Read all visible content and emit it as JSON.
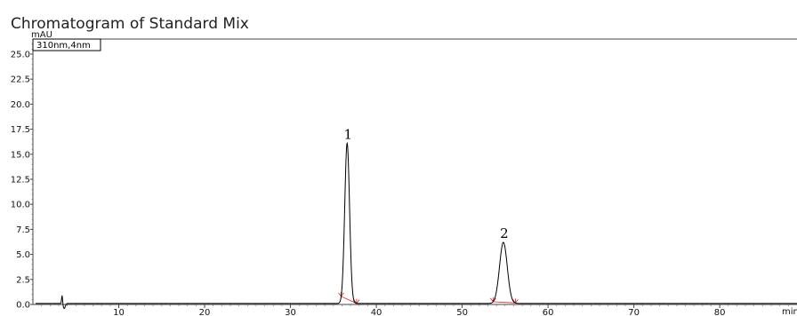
{
  "chart_data": {
    "type": "line",
    "title": "Chromatogram of Standard Mix",
    "ylabel": "mAU",
    "xlabel": "min",
    "channel_label": "310nm,4nm",
    "xlim": [
      0,
      89
    ],
    "ylim": [
      0,
      26.5
    ],
    "x_ticks": [
      10,
      20,
      30,
      40,
      50,
      60,
      70,
      80
    ],
    "y_ticks": [
      0.0,
      2.5,
      5.0,
      7.5,
      10.0,
      12.5,
      15.0,
      17.5,
      20.0,
      22.5,
      25.0
    ],
    "y_tick_labels": [
      "0.0",
      "2.5",
      "5.0",
      "7.5",
      "10.0",
      "12.5",
      "15.0",
      "17.5",
      "20.0",
      "22.5",
      "25.0"
    ],
    "grid": false,
    "line_color": "#000000",
    "baseline_color": "#e02020",
    "peaks": [
      {
        "label": "1",
        "retention_time": 36.6,
        "height": 16.0,
        "width": 0.28,
        "start": 35.9,
        "end": 37.7
      },
      {
        "label": "2",
        "retention_time": 54.8,
        "height": 6.1,
        "width": 0.45,
        "start": 53.6,
        "end": 56.2
      }
    ],
    "artifacts": [
      {
        "time": 3.4,
        "height": 0.8,
        "dip": -0.5
      }
    ]
  }
}
